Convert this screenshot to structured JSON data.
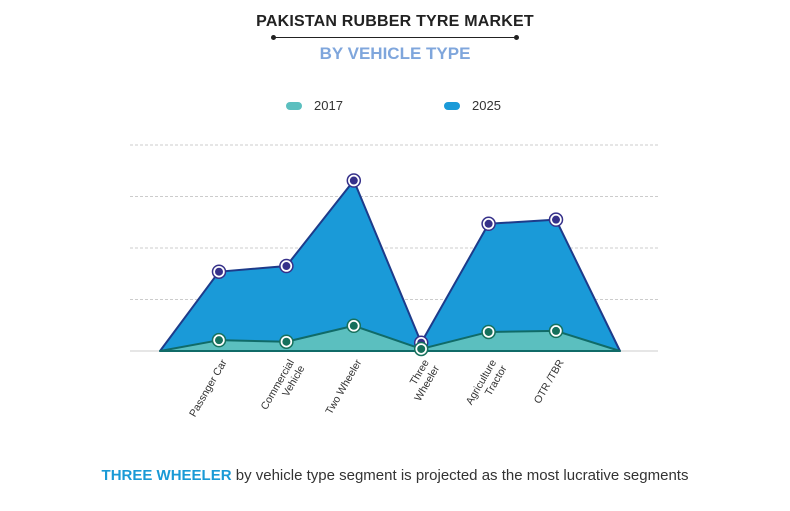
{
  "chart_data": {
    "type": "area",
    "title": "PAKISTAN RUBBER TYRE MARKET",
    "subtitle": "BY VEHICLE TYPE",
    "categories": [
      "Passnger Car",
      "Commercial Vehicle",
      "Two Wheeler",
      "Three Wheeler",
      "Agriculture Tractor",
      "OTR /TBR"
    ],
    "series": [
      {
        "name": "2017",
        "values": [
          0.21,
          0.18,
          0.49,
          0.04,
          0.37,
          0.39
        ],
        "color": "#5bbfbf",
        "line": "#106b68",
        "marker": "#16705c"
      },
      {
        "name": "2025",
        "values": [
          1.54,
          1.65,
          3.31,
          0.16,
          2.47,
          2.55
        ],
        "color": "#1a9ad8",
        "line": "#1d3b8a",
        "marker": "#36318a"
      }
    ],
    "ylim": [
      0,
      4
    ],
    "grid": true,
    "legend_position": "top",
    "xlabel": "",
    "ylabel": ""
  },
  "footer": {
    "highlight": "THREE WHEELER",
    "text": " by vehicle type segment is projected as the most lucrative segments"
  }
}
